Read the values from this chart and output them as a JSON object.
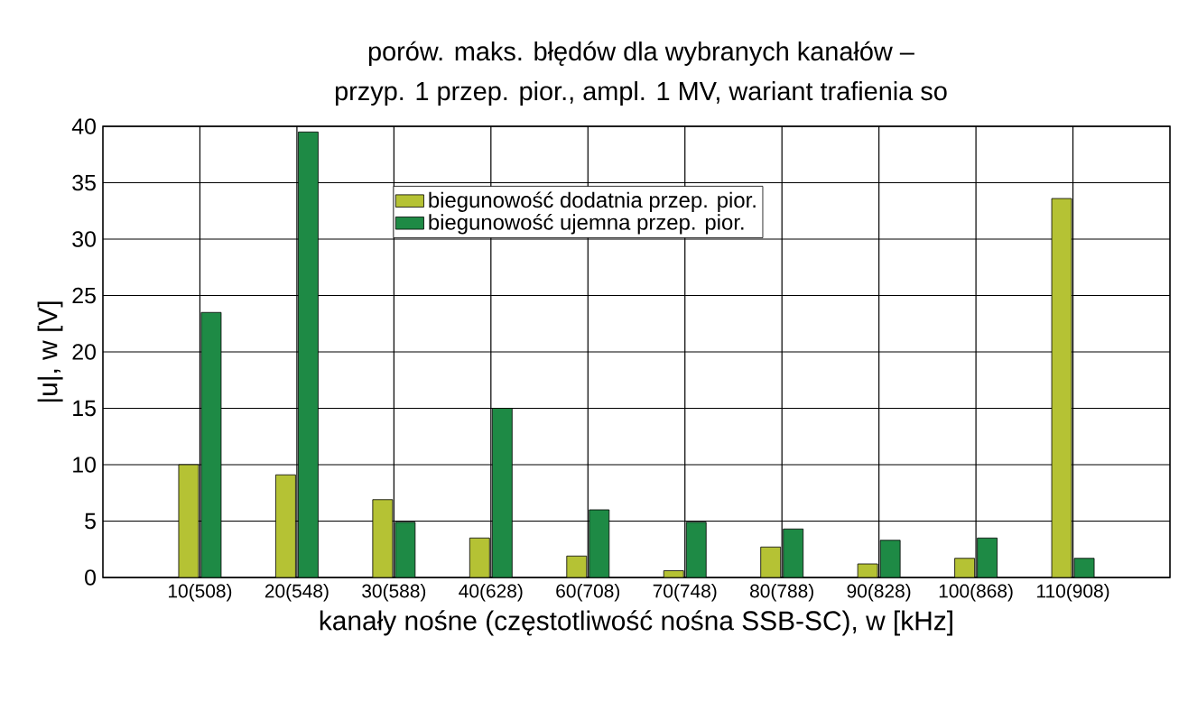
{
  "chart_data": {
    "type": "bar",
    "title": "porów. maks. błędów dla wybranych kanałów –",
    "subtitle": "przyp. 1 przep. pior., ampl. 1 MV, wariant trafienia so",
    "xlabel": "kanały nośne (częstotliwość nośna SSB-SC), w [kHz]",
    "ylabel": "|u|, w [V]",
    "categories": [
      "10(508)",
      "20(548)",
      "30(588)",
      "40(628)",
      "60(708)",
      "70(748)",
      "80(788)",
      "90(828)",
      "100(868)",
      "110(908)"
    ],
    "series": [
      {
        "name": "biegunowość dodatnia przep. pior.",
        "color": "#b5c234",
        "values": [
          10,
          9.1,
          6.9,
          3.5,
          1.9,
          0.6,
          2.7,
          1.2,
          1.7,
          33.6
        ]
      },
      {
        "name": "biegunowość ujemna przep. pior.",
        "color": "#1e8a45",
        "values": [
          23.5,
          39.5,
          4.9,
          15,
          6.0,
          4.9,
          4.3,
          3.3,
          3.5,
          1.7
        ]
      }
    ],
    "ylim": [
      0,
      40
    ],
    "yticks": [
      0,
      5,
      10,
      15,
      20,
      25,
      30,
      35,
      40
    ],
    "grid": true,
    "legend": "top"
  }
}
